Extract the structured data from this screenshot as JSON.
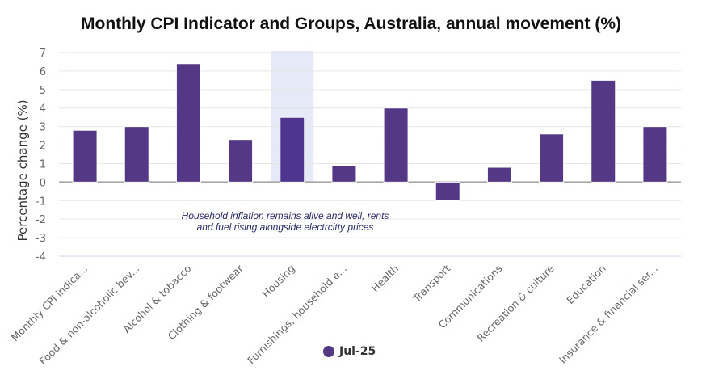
{
  "chart_data": {
    "type": "bar",
    "title": "Monthly CPI Indicator and Groups, Australia, annual movement (%)",
    "xlabel": "",
    "ylabel": "Percentage change (%)",
    "ylim": [
      -4,
      7
    ],
    "yticks": [
      7,
      6,
      5,
      4,
      3,
      2,
      1,
      0,
      -1,
      -2,
      -3,
      -4
    ],
    "grid": true,
    "legend_placement": "bottom",
    "categories": [
      "Monthly CPI indica...",
      "Food & non-alcoholic bev...",
      "Alcohol & tobacco",
      "Clothing & footwear",
      "Housing",
      "Furnishings, household e...",
      "Health",
      "Transport",
      "Communications",
      "Recreation & culture",
      "Education",
      "Insurance & financial ser..."
    ],
    "series": [
      {
        "name": "Jul-25",
        "values": [
          2.8,
          3.0,
          6.4,
          2.3,
          3.5,
          0.9,
          4.0,
          -1.0,
          0.8,
          2.6,
          5.5,
          3.0
        ]
      }
    ],
    "highlighted_category": "Housing",
    "annotation": [
      "Household inflation remains alive and well, rents",
      "and fuel rising alongside electrcitty prices"
    ],
    "colors": {
      "bar": "#553885",
      "highlight_band": "#e6e9f8",
      "zero_line": "#a6a6a6",
      "grid": "#e6e6e6"
    }
  }
}
